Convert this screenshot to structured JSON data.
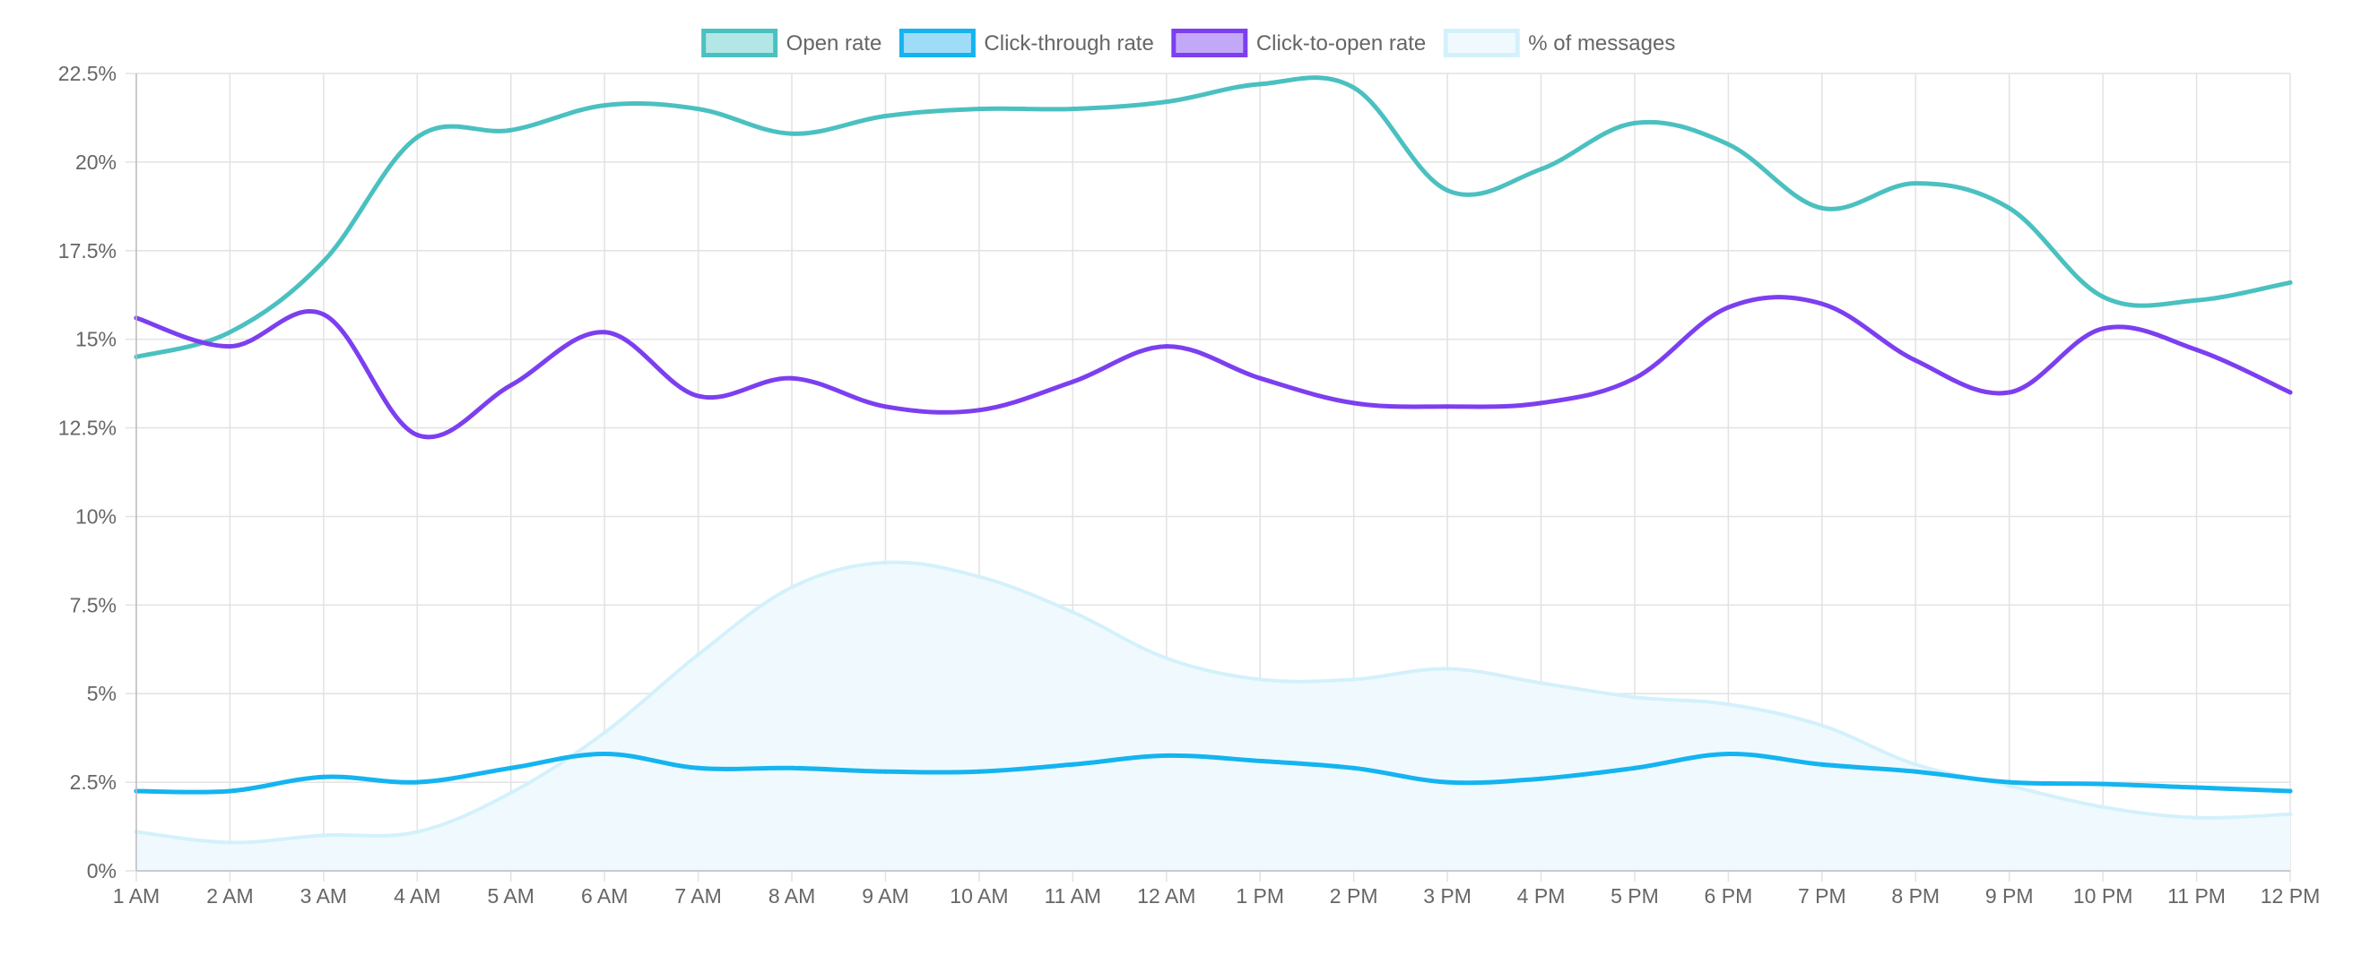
{
  "chart_data": {
    "type": "line",
    "categories": [
      "1 AM",
      "2 AM",
      "3 AM",
      "4 AM",
      "5 AM",
      "6 AM",
      "7 AM",
      "8 AM",
      "9 AM",
      "10 AM",
      "11 AM",
      "12 AM",
      "1 PM",
      "2 PM",
      "3 PM",
      "4 PM",
      "5 PM",
      "6 PM",
      "7 PM",
      "8 PM",
      "9 PM",
      "10 PM",
      "11 PM",
      "12 PM"
    ],
    "ylim": [
      0,
      22.5
    ],
    "yticks": [
      {
        "value": 0,
        "label": "0%"
      },
      {
        "value": 2.5,
        "label": "2.5%"
      },
      {
        "value": 5,
        "label": "5%"
      },
      {
        "value": 7.5,
        "label": "7.5%"
      },
      {
        "value": 10,
        "label": "10%"
      },
      {
        "value": 12.5,
        "label": "12.5%"
      },
      {
        "value": 15,
        "label": "15%"
      },
      {
        "value": 17.5,
        "label": "17.5%"
      },
      {
        "value": 20,
        "label": "20%"
      },
      {
        "value": 22.5,
        "label": "22.5%"
      }
    ],
    "grid": true,
    "legend_position": "top",
    "series": [
      {
        "name": "Open rate",
        "color": "#4bc0c0",
        "fill": "#b3e6e6",
        "area": false,
        "values": [
          14.5,
          15.2,
          17.2,
          20.7,
          20.9,
          21.6,
          21.5,
          20.8,
          21.3,
          21.5,
          21.5,
          21.7,
          22.2,
          22.1,
          19.2,
          19.8,
          21.1,
          20.5,
          18.7,
          19.4,
          18.7,
          16.2,
          16.1,
          16.6
        ]
      },
      {
        "name": "Click-through rate",
        "color": "#14b4f0",
        "fill": "#9fdcf8",
        "area": false,
        "values": [
          2.25,
          2.25,
          2.65,
          2.5,
          2.9,
          3.3,
          2.9,
          2.9,
          2.8,
          2.8,
          3.0,
          3.25,
          3.1,
          2.9,
          2.5,
          2.6,
          2.9,
          3.3,
          3.0,
          2.8,
          2.5,
          2.45,
          2.35,
          2.25
        ]
      },
      {
        "name": "Click-to-open rate",
        "color": "#7c3ff0",
        "fill": "#c3a8f7",
        "area": false,
        "values": [
          15.6,
          14.8,
          15.7,
          12.3,
          13.7,
          15.2,
          13.4,
          13.9,
          13.1,
          13.0,
          13.8,
          14.8,
          13.9,
          13.2,
          13.1,
          13.2,
          13.9,
          15.9,
          16.0,
          14.4,
          13.5,
          15.3,
          14.7,
          13.5
        ]
      },
      {
        "name": "% of messages",
        "color": "#d4f1fb",
        "fill": "#f0fafe",
        "area": true,
        "values": [
          1.1,
          0.8,
          1.0,
          1.1,
          2.2,
          3.9,
          6.1,
          8.0,
          8.7,
          8.3,
          7.3,
          6.0,
          5.4,
          5.4,
          5.7,
          5.3,
          4.9,
          4.7,
          4.1,
          3.0,
          2.4,
          1.8,
          1.5,
          1.6
        ]
      }
    ]
  }
}
